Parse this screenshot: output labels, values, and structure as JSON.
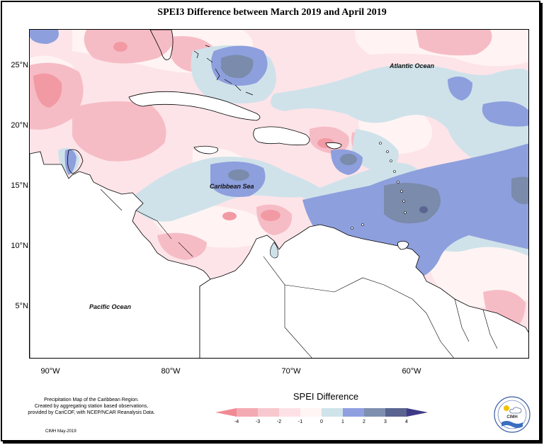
{
  "title": "SPEI3 Difference between March 2019 and April 2019",
  "map": {
    "lat_labels": [
      {
        "text": "25°N",
        "value": 25
      },
      {
        "text": "20°N",
        "value": 20
      },
      {
        "text": "15°N",
        "value": 15
      },
      {
        "text": "10°N",
        "value": 10
      },
      {
        "text": "5°N",
        "value": 5
      }
    ],
    "lon_labels": [
      {
        "text": "90°W",
        "value": -90
      },
      {
        "text": "80°W",
        "value": -80
      },
      {
        "text": "70°W",
        "value": -70
      },
      {
        "text": "60°W",
        "value": -60
      }
    ],
    "ocean_labels": {
      "atlantic": "Atlantic Ocean",
      "caribbean": "Caribbean Sea",
      "pacific": "Pacific Ocean"
    },
    "extent": {
      "lon_min": -92,
      "lon_max": -50.5,
      "lat_min": 0.5,
      "lat_max": 28
    }
  },
  "legend": {
    "title": "SPEI Difference",
    "ticks": [
      "-4",
      "-3",
      "-2",
      "-1",
      "0",
      "1",
      "2",
      "3",
      "4"
    ],
    "colors": [
      "#f08a94",
      "#f4aab2",
      "#f8c8cf",
      "#fde1e6",
      "#fff5f4",
      "#cfe3ea",
      "#8f9fe0",
      "#7e8fb0",
      "#5a6490",
      "#3f3a86"
    ]
  },
  "note": {
    "lines": [
      "Precipitation Map of the Caribbean Region.",
      "Created by aggregating station based observations,",
      "provided by CariCOF, with NCEP/NCAR Reanalysis Data."
    ],
    "credit": "CIMH May-2019"
  },
  "logo": {
    "text": "CIMH"
  }
}
